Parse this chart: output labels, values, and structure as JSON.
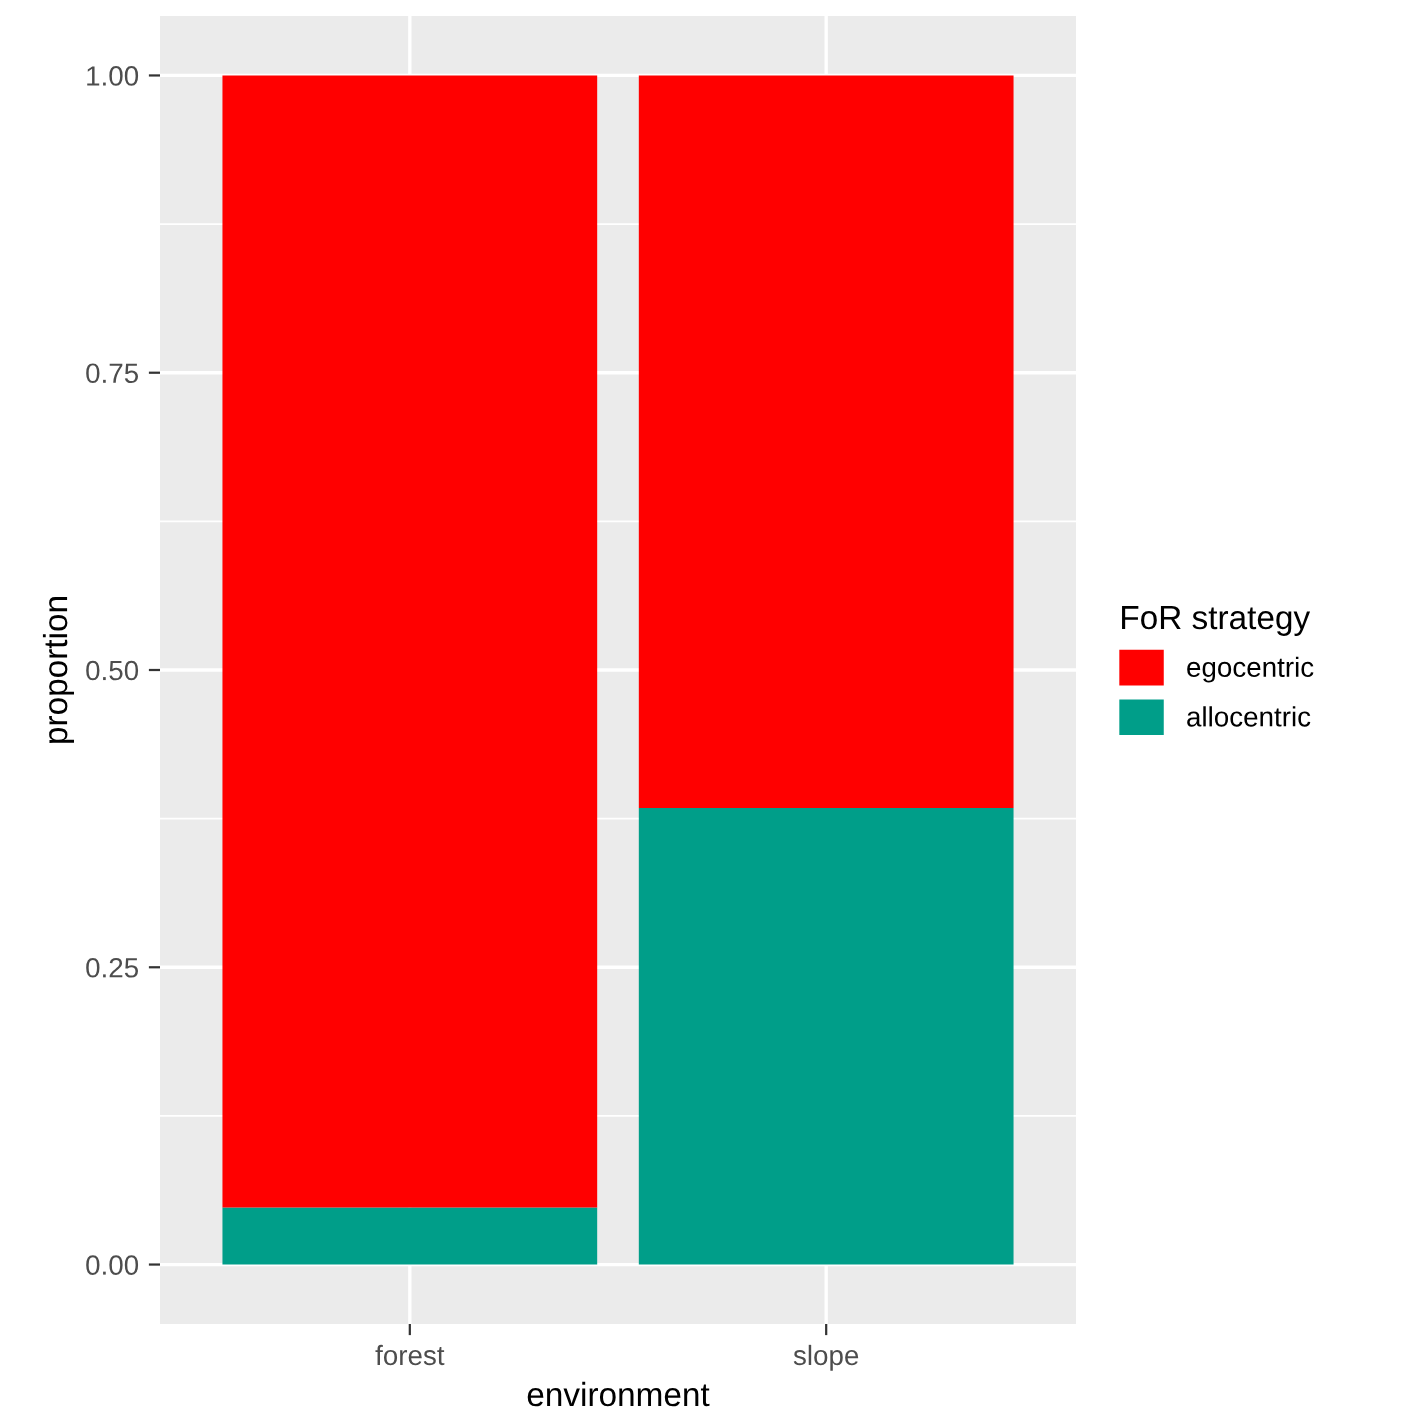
{
  "chart_data": {
    "type": "bar",
    "stacked": true,
    "xlabel": "environment",
    "ylabel": "proportion",
    "legend_title": "FoR strategy",
    "categories": [
      "forest",
      "slope"
    ],
    "series": [
      {
        "name": "allocentric",
        "color": "#009e89",
        "values": [
          0.048,
          0.384
        ]
      },
      {
        "name": "egocentric",
        "color": "#ff0000",
        "values": [
          0.952,
          0.616
        ]
      }
    ],
    "ylim": [
      -0.05,
      1.05
    ],
    "yticks": [
      {
        "value": 0,
        "label": "0.00"
      },
      {
        "value": 0.25,
        "label": "0.25"
      },
      {
        "value": 0.5,
        "label": "0.50"
      },
      {
        "value": 0.75,
        "label": "0.75"
      },
      {
        "value": 1,
        "label": "1.00"
      }
    ],
    "grid": true,
    "legend": "right"
  }
}
